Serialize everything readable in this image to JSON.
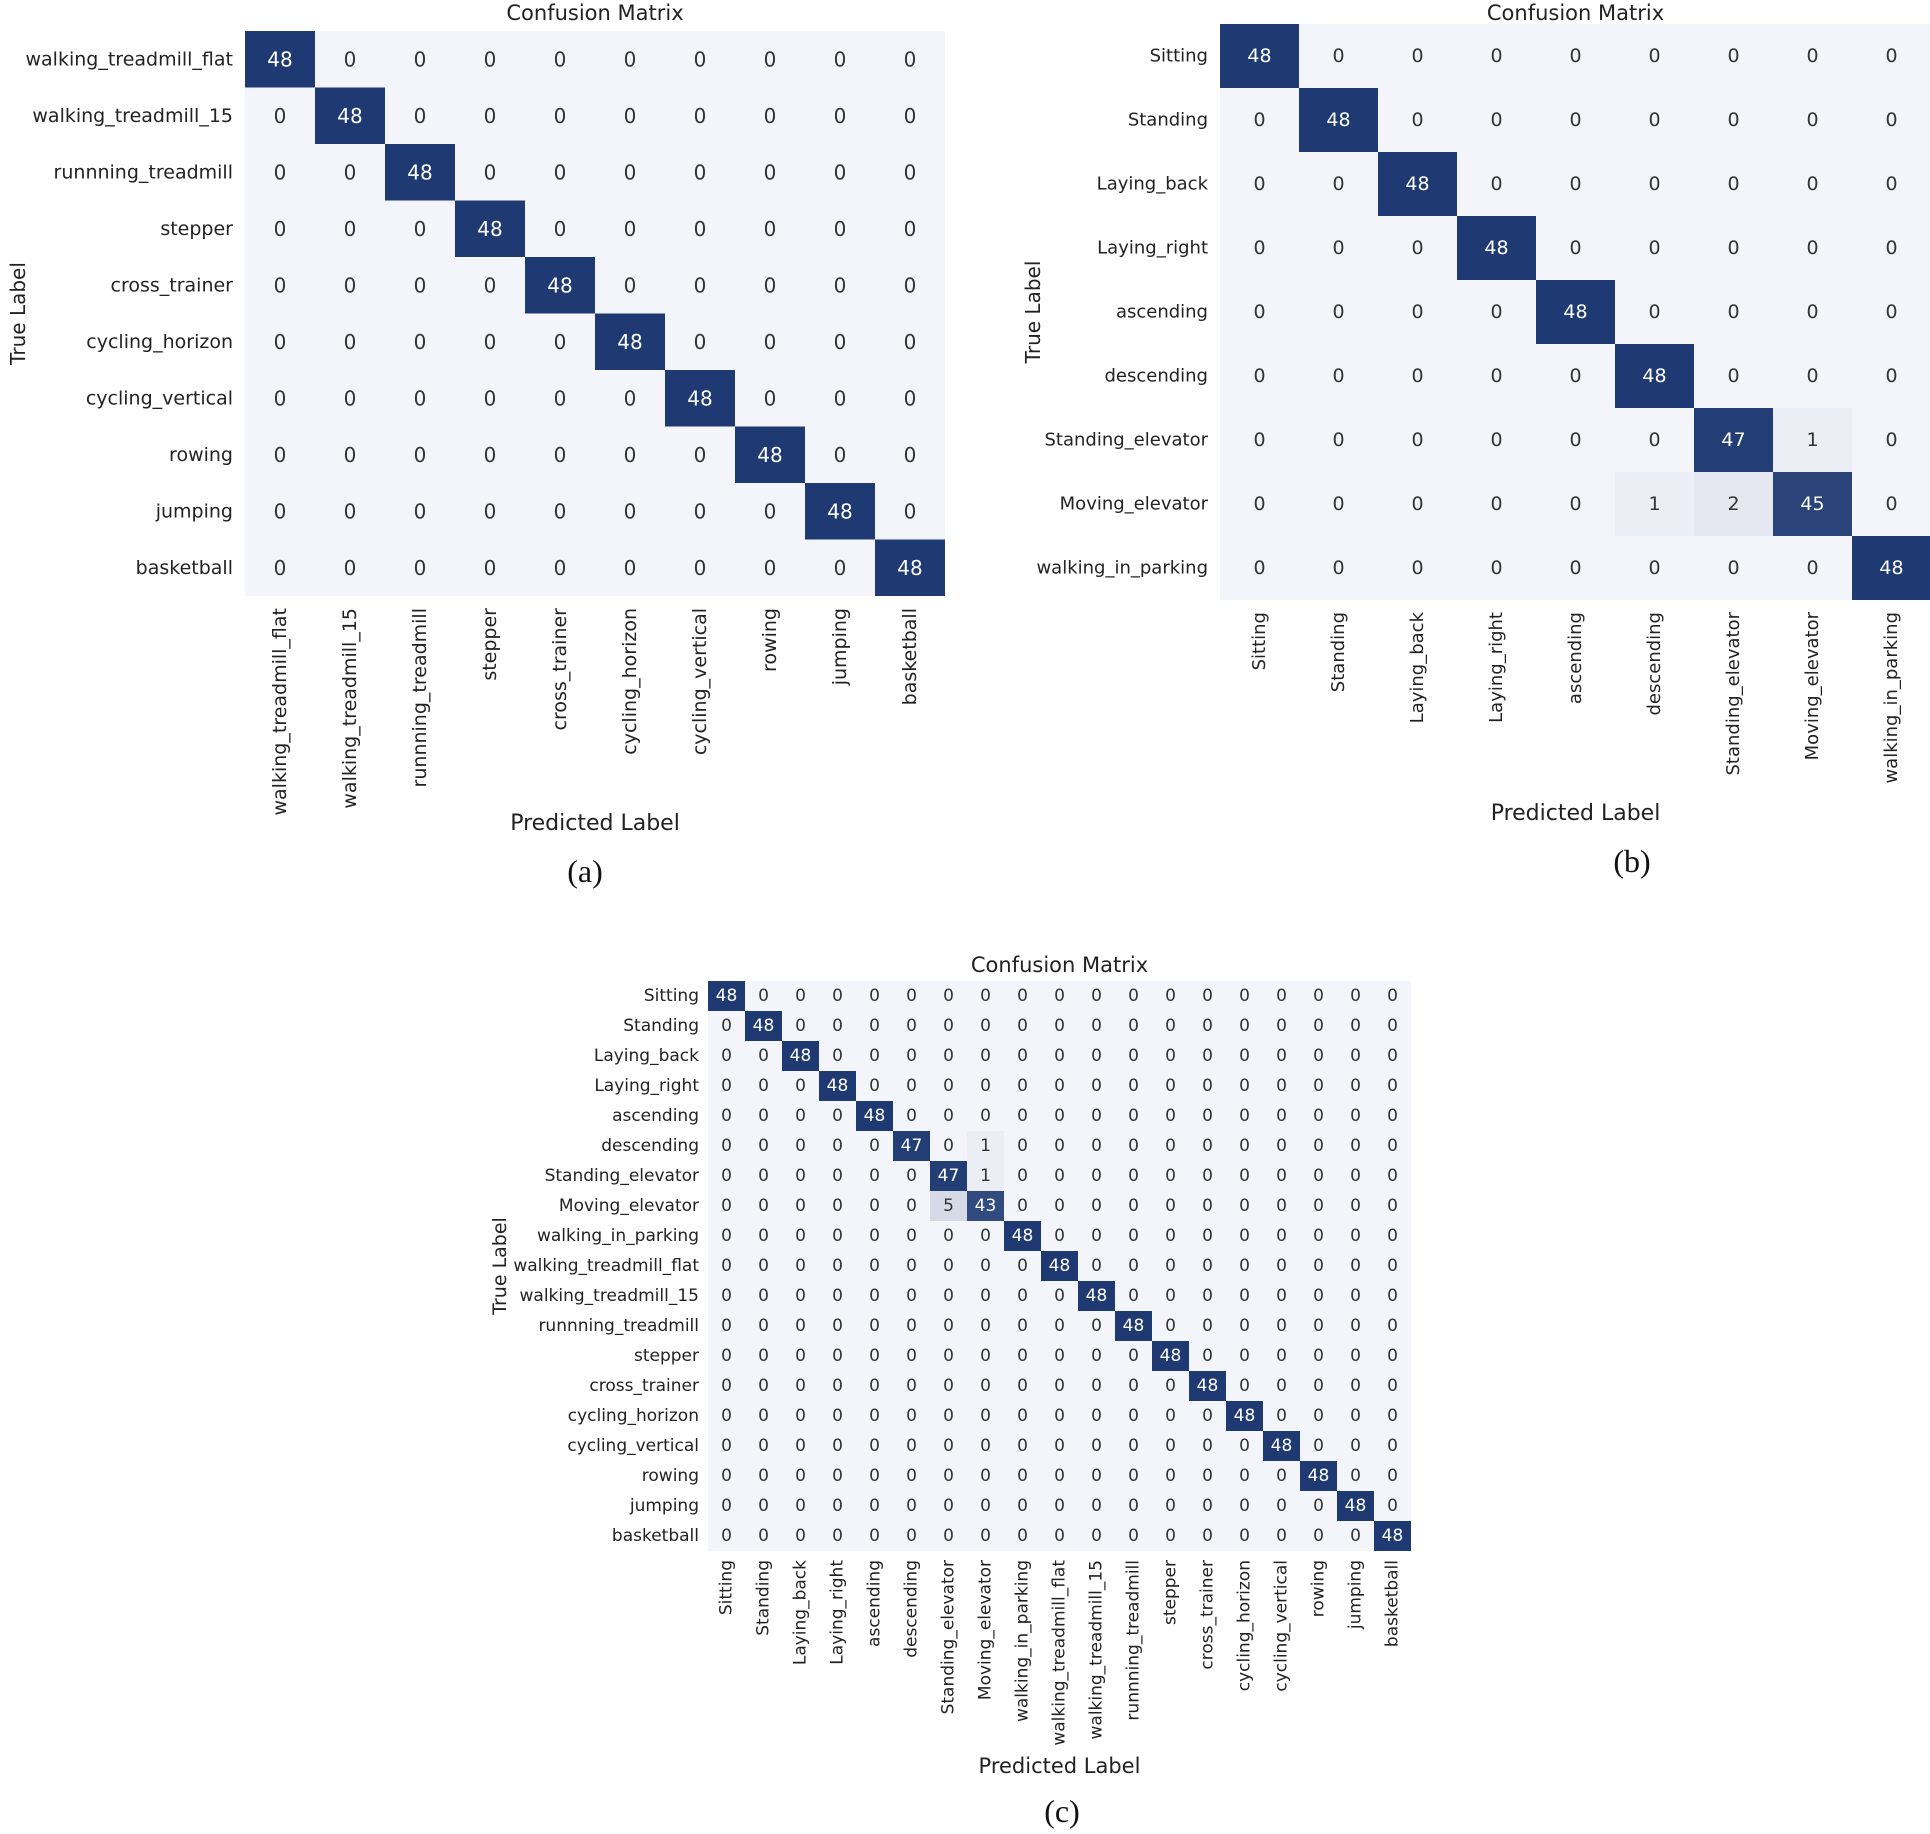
{
  "colors": {
    "max": "#1f3a73",
    "min": "#f4f5fa",
    "text_dark": "#333333",
    "text_light": "#ffffff"
  },
  "chart_data": [
    {
      "type": "heatmap",
      "caption": "(a)",
      "title": "Confusion Matrix",
      "xlabel": "Predicted Label",
      "ylabel": "True Label",
      "labels": [
        "walking_treadmill_flat",
        "walking_treadmill_15",
        "runnning_treadmill",
        "stepper",
        "cross_trainer",
        "cycling_horizon",
        "cycling_vertical",
        "rowing",
        "jumping",
        "basketball"
      ],
      "matrix": [
        [
          48,
          0,
          0,
          0,
          0,
          0,
          0,
          0,
          0,
          0
        ],
        [
          0,
          48,
          0,
          0,
          0,
          0,
          0,
          0,
          0,
          0
        ],
        [
          0,
          0,
          48,
          0,
          0,
          0,
          0,
          0,
          0,
          0
        ],
        [
          0,
          0,
          0,
          48,
          0,
          0,
          0,
          0,
          0,
          0
        ],
        [
          0,
          0,
          0,
          0,
          48,
          0,
          0,
          0,
          0,
          0
        ],
        [
          0,
          0,
          0,
          0,
          0,
          48,
          0,
          0,
          0,
          0
        ],
        [
          0,
          0,
          0,
          0,
          0,
          0,
          48,
          0,
          0,
          0
        ],
        [
          0,
          0,
          0,
          0,
          0,
          0,
          0,
          48,
          0,
          0
        ],
        [
          0,
          0,
          0,
          0,
          0,
          0,
          0,
          0,
          48,
          0
        ],
        [
          0,
          0,
          0,
          0,
          0,
          0,
          0,
          0,
          0,
          48
        ]
      ]
    },
    {
      "type": "heatmap",
      "caption": "(b)",
      "title": "Confusion Matrix",
      "xlabel": "Predicted Label",
      "ylabel": "True Label",
      "labels": [
        "Sitting",
        "Standing",
        "Laying_back",
        "Laying_right",
        "ascending",
        "descending",
        "Standing_elevator",
        "Moving_elevator",
        "walking_in_parking"
      ],
      "matrix": [
        [
          48,
          0,
          0,
          0,
          0,
          0,
          0,
          0,
          0
        ],
        [
          0,
          48,
          0,
          0,
          0,
          0,
          0,
          0,
          0
        ],
        [
          0,
          0,
          48,
          0,
          0,
          0,
          0,
          0,
          0
        ],
        [
          0,
          0,
          0,
          48,
          0,
          0,
          0,
          0,
          0
        ],
        [
          0,
          0,
          0,
          0,
          48,
          0,
          0,
          0,
          0
        ],
        [
          0,
          0,
          0,
          0,
          0,
          48,
          0,
          0,
          0
        ],
        [
          0,
          0,
          0,
          0,
          0,
          0,
          47,
          1,
          0
        ],
        [
          0,
          0,
          0,
          0,
          0,
          1,
          2,
          45,
          0
        ],
        [
          0,
          0,
          0,
          0,
          0,
          0,
          0,
          0,
          48
        ]
      ]
    },
    {
      "type": "heatmap",
      "caption": "(c)",
      "title": "Confusion Matrix",
      "xlabel": "Predicted Label",
      "ylabel": "True Label",
      "labels": [
        "Sitting",
        "Standing",
        "Laying_back",
        "Laying_right",
        "ascending",
        "descending",
        "Standing_elevator",
        "Moving_elevator",
        "walking_in_parking",
        "walking_treadmill_flat",
        "walking_treadmill_15",
        "runnning_treadmill",
        "stepper",
        "cross_trainer",
        "cycling_horizon",
        "cycling_vertical",
        "rowing",
        "jumping",
        "basketball"
      ],
      "matrix": [
        [
          48,
          0,
          0,
          0,
          0,
          0,
          0,
          0,
          0,
          0,
          0,
          0,
          0,
          0,
          0,
          0,
          0,
          0,
          0
        ],
        [
          0,
          48,
          0,
          0,
          0,
          0,
          0,
          0,
          0,
          0,
          0,
          0,
          0,
          0,
          0,
          0,
          0,
          0,
          0
        ],
        [
          0,
          0,
          48,
          0,
          0,
          0,
          0,
          0,
          0,
          0,
          0,
          0,
          0,
          0,
          0,
          0,
          0,
          0,
          0
        ],
        [
          0,
          0,
          0,
          48,
          0,
          0,
          0,
          0,
          0,
          0,
          0,
          0,
          0,
          0,
          0,
          0,
          0,
          0,
          0
        ],
        [
          0,
          0,
          0,
          0,
          48,
          0,
          0,
          0,
          0,
          0,
          0,
          0,
          0,
          0,
          0,
          0,
          0,
          0,
          0
        ],
        [
          0,
          0,
          0,
          0,
          0,
          47,
          0,
          1,
          0,
          0,
          0,
          0,
          0,
          0,
          0,
          0,
          0,
          0,
          0
        ],
        [
          0,
          0,
          0,
          0,
          0,
          0,
          47,
          1,
          0,
          0,
          0,
          0,
          0,
          0,
          0,
          0,
          0,
          0,
          0
        ],
        [
          0,
          0,
          0,
          0,
          0,
          0,
          5,
          43,
          0,
          0,
          0,
          0,
          0,
          0,
          0,
          0,
          0,
          0,
          0
        ],
        [
          0,
          0,
          0,
          0,
          0,
          0,
          0,
          0,
          48,
          0,
          0,
          0,
          0,
          0,
          0,
          0,
          0,
          0,
          0
        ],
        [
          0,
          0,
          0,
          0,
          0,
          0,
          0,
          0,
          0,
          48,
          0,
          0,
          0,
          0,
          0,
          0,
          0,
          0,
          0
        ],
        [
          0,
          0,
          0,
          0,
          0,
          0,
          0,
          0,
          0,
          0,
          48,
          0,
          0,
          0,
          0,
          0,
          0,
          0,
          0
        ],
        [
          0,
          0,
          0,
          0,
          0,
          0,
          0,
          0,
          0,
          0,
          0,
          48,
          0,
          0,
          0,
          0,
          0,
          0,
          0
        ],
        [
          0,
          0,
          0,
          0,
          0,
          0,
          0,
          0,
          0,
          0,
          0,
          0,
          48,
          0,
          0,
          0,
          0,
          0,
          0
        ],
        [
          0,
          0,
          0,
          0,
          0,
          0,
          0,
          0,
          0,
          0,
          0,
          0,
          0,
          48,
          0,
          0,
          0,
          0,
          0
        ],
        [
          0,
          0,
          0,
          0,
          0,
          0,
          0,
          0,
          0,
          0,
          0,
          0,
          0,
          0,
          48,
          0,
          0,
          0,
          0
        ],
        [
          0,
          0,
          0,
          0,
          0,
          0,
          0,
          0,
          0,
          0,
          0,
          0,
          0,
          0,
          0,
          48,
          0,
          0,
          0
        ],
        [
          0,
          0,
          0,
          0,
          0,
          0,
          0,
          0,
          0,
          0,
          0,
          0,
          0,
          0,
          0,
          0,
          48,
          0,
          0
        ],
        [
          0,
          0,
          0,
          0,
          0,
          0,
          0,
          0,
          0,
          0,
          0,
          0,
          0,
          0,
          0,
          0,
          0,
          48,
          0
        ],
        [
          0,
          0,
          0,
          0,
          0,
          0,
          0,
          0,
          0,
          0,
          0,
          0,
          0,
          0,
          0,
          0,
          0,
          0,
          48
        ]
      ]
    }
  ]
}
